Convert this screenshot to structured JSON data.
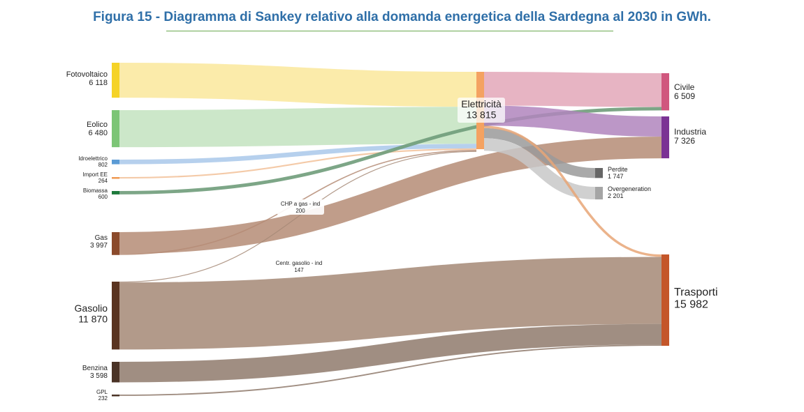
{
  "title": "Figura 15 -  Diagramma di Sankey relativo alla domanda energetica della Sardegna al 2030 in GWh.",
  "colors": {
    "title": "#2f6fa8",
    "rule": "#6aa84f",
    "Fotovoltaico": "#f5d327",
    "Eolico": "#7cc576",
    "Idroelettrico": "#5b9bd5",
    "Import EE": "#ef9a52",
    "Biomassa": "#1e7a3c",
    "Gas": "#8b4a2b",
    "Gasolio": "#5a3420",
    "Benzina": "#4a3326",
    "GPL": "#4a3326",
    "Elettricità": "#f4a261",
    "Civile": "#d0577e",
    "Industria": "#7b3294",
    "Perdite": "#666666",
    "Overgeneration": "#a5a5a5",
    "Trasporti": "#c4562a"
  },
  "nodes": [
    {
      "id": "Fotovoltaico",
      "label": "Fotovoltaico",
      "value": "6 118"
    },
    {
      "id": "Eolico",
      "label": "Eolico",
      "value": "6 480"
    },
    {
      "id": "Idroelettrico",
      "label": "Idroelettrico",
      "value": "802"
    },
    {
      "id": "Import EE",
      "label": "Import EE",
      "value": "264"
    },
    {
      "id": "Biomassa",
      "label": "Biomassa",
      "value": "600"
    },
    {
      "id": "Gas",
      "label": "Gas",
      "value": "3 997"
    },
    {
      "id": "Gasolio",
      "label": "Gasolio",
      "value": "11 870"
    },
    {
      "id": "Benzina",
      "label": "Benzina",
      "value": "3 598"
    },
    {
      "id": "GPL",
      "label": "GPL",
      "value": "232"
    },
    {
      "id": "Elettricità",
      "label": "Elettricità",
      "value": "13 815"
    },
    {
      "id": "Civile",
      "label": "Civile",
      "value": "6 509"
    },
    {
      "id": "Industria",
      "label": "Industria",
      "value": "7 326"
    },
    {
      "id": "Perdite",
      "label": "Perdite",
      "value": "1 747"
    },
    {
      "id": "Overgeneration",
      "label": "Overgeneration",
      "value": "2 201"
    },
    {
      "id": "Trasporti",
      "label": "Trasporti",
      "value": "15 982"
    }
  ],
  "link_labels": [
    {
      "id": "chp",
      "label": "CHP a gas - ind",
      "value": "200"
    },
    {
      "id": "centr",
      "label": "Centr. gasolio - ind",
      "value": "147"
    }
  ],
  "links": [
    {
      "source": "Fotovoltaico",
      "target": "Elettricità",
      "value": 6118
    },
    {
      "source": "Eolico",
      "target": "Elettricità",
      "value": 6480
    },
    {
      "source": "Idroelettrico",
      "target": "Elettricità",
      "value": 802
    },
    {
      "source": "Import EE",
      "target": "Elettricità",
      "value": 264
    },
    {
      "source": "Biomassa",
      "target": "Civile",
      "value": 600
    },
    {
      "source": "Gas",
      "target": "Elettricità",
      "value": 200
    },
    {
      "source": "Gas",
      "target": "Industria",
      "value": 3797
    },
    {
      "source": "Gasolio",
      "target": "Elettricità",
      "value": 147
    },
    {
      "source": "Gasolio",
      "target": "Trasporti",
      "value": 11723
    },
    {
      "source": "Benzina",
      "target": "Trasporti",
      "value": 3598
    },
    {
      "source": "GPL",
      "target": "Trasporti",
      "value": 232
    },
    {
      "source": "Elettricità",
      "target": "Civile",
      "value": 5909
    },
    {
      "source": "Elettricità",
      "target": "Industria",
      "value": 3529
    },
    {
      "source": "Elettricità",
      "target": "Perdite",
      "value": 1747
    },
    {
      "source": "Elettricità",
      "target": "Overgeneration",
      "value": 2201
    },
    {
      "source": "Elettricità",
      "target": "Trasporti",
      "value": 429
    }
  ]
}
